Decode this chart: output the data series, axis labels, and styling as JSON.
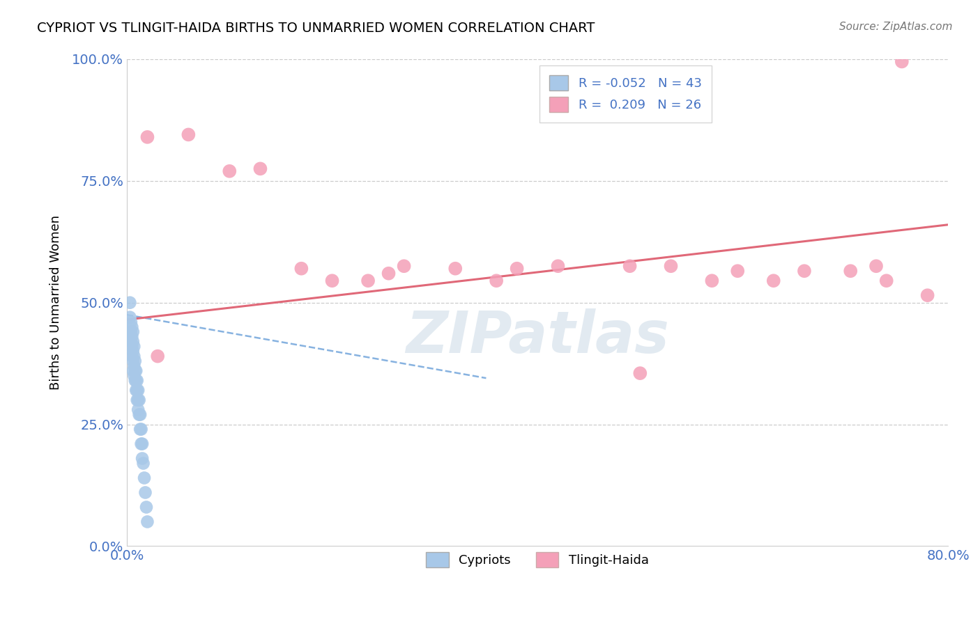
{
  "title": "CYPRIOT VS TLINGIT-HAIDA BIRTHS TO UNMARRIED WOMEN CORRELATION CHART",
  "source": "Source: ZipAtlas.com",
  "ylabel": "Births to Unmarried Women",
  "xlim": [
    0.0,
    0.8
  ],
  "ylim": [
    0.0,
    1.0
  ],
  "xticks": [
    0.0,
    0.8
  ],
  "xtick_labels": [
    "0.0%",
    "80.0%"
  ],
  "ytick_labels": [
    "0.0%",
    "25.0%",
    "50.0%",
    "75.0%",
    "100.0%"
  ],
  "yticks": [
    0.0,
    0.25,
    0.5,
    0.75,
    1.0
  ],
  "blue_R": -0.052,
  "blue_N": 43,
  "pink_R": 0.209,
  "pink_N": 26,
  "blue_color": "#a8c8e8",
  "pink_color": "#f4a0b8",
  "blue_line_color": "#7aaadd",
  "pink_line_color": "#e06878",
  "tick_color": "#4472c4",
  "grid_color": "#cccccc",
  "blue_dots_x": [
    0.003,
    0.003,
    0.004,
    0.004,
    0.004,
    0.005,
    0.005,
    0.005,
    0.005,
    0.006,
    0.006,
    0.006,
    0.006,
    0.006,
    0.007,
    0.007,
    0.007,
    0.007,
    0.008,
    0.008,
    0.008,
    0.009,
    0.009,
    0.009,
    0.01,
    0.01,
    0.01,
    0.011,
    0.011,
    0.011,
    0.012,
    0.012,
    0.013,
    0.013,
    0.014,
    0.014,
    0.015,
    0.015,
    0.016,
    0.017,
    0.018,
    0.019,
    0.02
  ],
  "blue_dots_y": [
    0.5,
    0.47,
    0.46,
    0.44,
    0.42,
    0.45,
    0.43,
    0.41,
    0.39,
    0.44,
    0.42,
    0.4,
    0.38,
    0.36,
    0.41,
    0.39,
    0.37,
    0.35,
    0.38,
    0.36,
    0.34,
    0.36,
    0.34,
    0.32,
    0.34,
    0.32,
    0.3,
    0.32,
    0.3,
    0.28,
    0.3,
    0.27,
    0.27,
    0.24,
    0.24,
    0.21,
    0.21,
    0.18,
    0.17,
    0.14,
    0.11,
    0.08,
    0.05
  ],
  "pink_dots_x": [
    0.02,
    0.06,
    0.1,
    0.13,
    0.17,
    0.2,
    0.235,
    0.255,
    0.27,
    0.32,
    0.36,
    0.38,
    0.42,
    0.49,
    0.53,
    0.57,
    0.595,
    0.63,
    0.66,
    0.705,
    0.74,
    0.755,
    0.73,
    0.78,
    0.03,
    0.5
  ],
  "pink_dots_y": [
    0.84,
    0.845,
    0.77,
    0.775,
    0.57,
    0.545,
    0.545,
    0.56,
    0.575,
    0.57,
    0.545,
    0.57,
    0.575,
    0.575,
    0.575,
    0.545,
    0.565,
    0.545,
    0.565,
    0.565,
    0.545,
    0.995,
    0.575,
    0.515,
    0.39,
    0.355
  ],
  "pink_line_x0": 0.0,
  "pink_line_x1": 0.8,
  "pink_line_y0": 0.465,
  "pink_line_y1": 0.66,
  "blue_line_x0": 0.0,
  "blue_line_x1": 0.35,
  "blue_line_y0": 0.475,
  "blue_line_y1": 0.345
}
